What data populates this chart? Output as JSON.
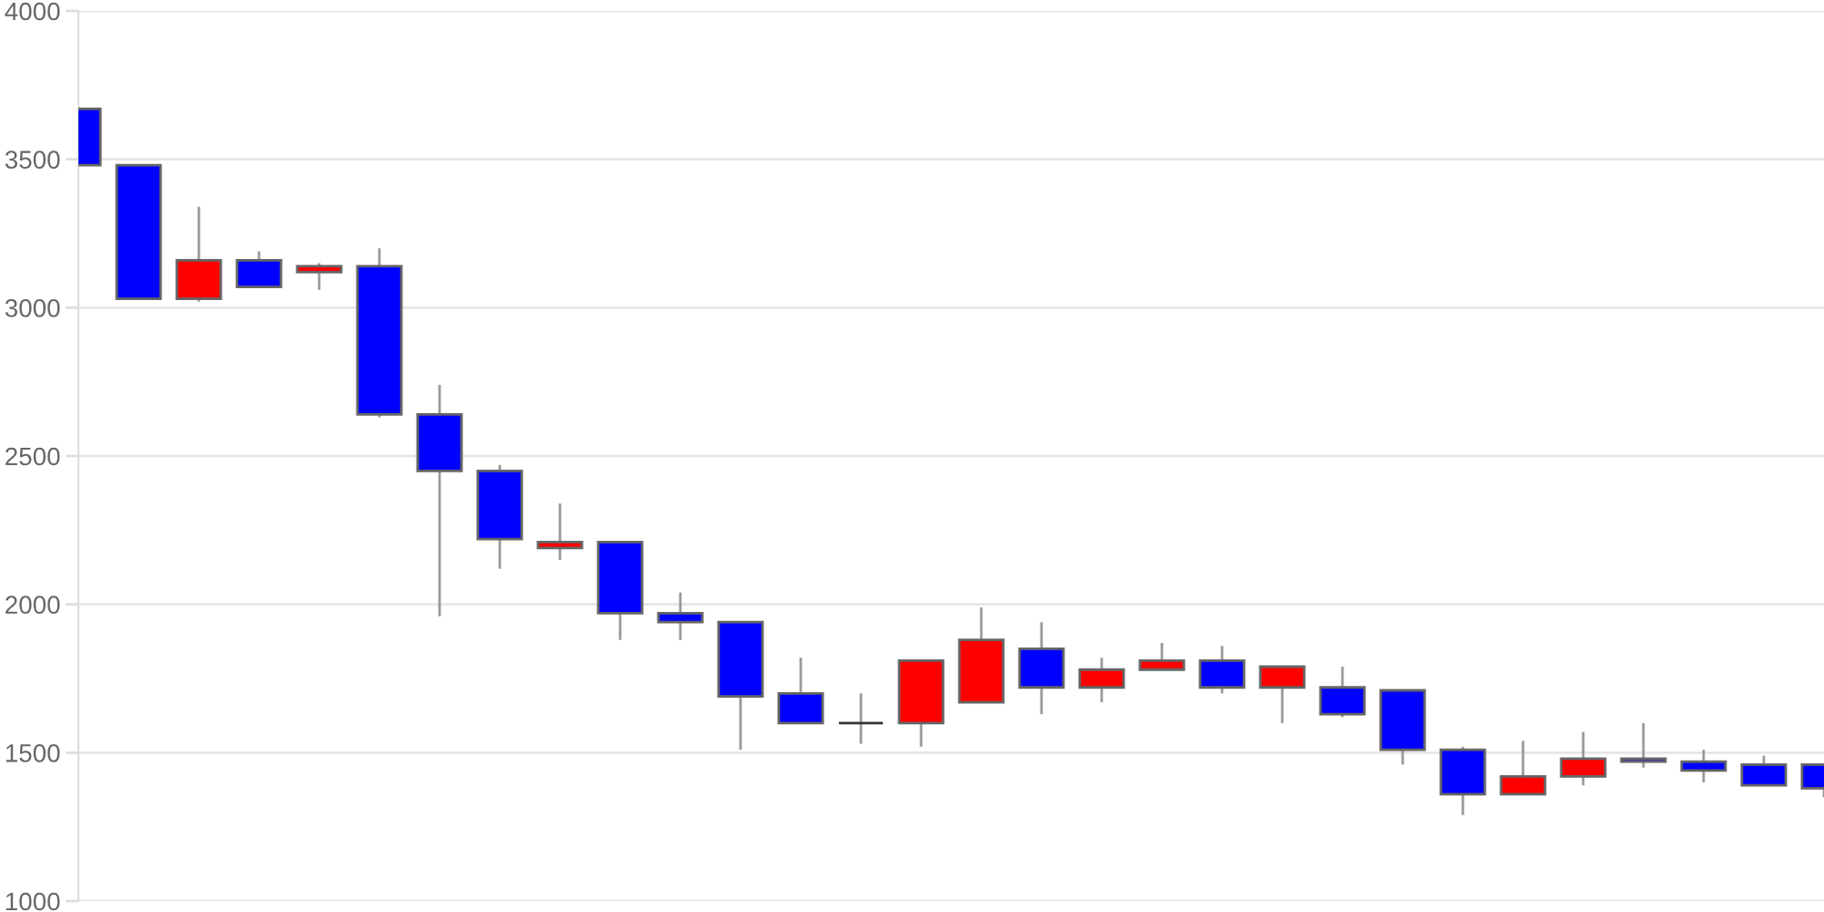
{
  "chart_data": {
    "type": "candlestick",
    "categories": [
      null,
      null,
      null,
      null,
      null,
      null,
      null,
      null,
      null,
      null,
      null,
      null,
      null,
      null,
      null,
      null,
      null,
      null,
      null,
      null,
      null,
      null,
      null,
      null,
      null,
      null,
      null,
      null,
      null,
      null
    ],
    "ohlc": [
      [
        3670,
        3680,
        3480,
        3480
      ],
      [
        3480,
        3480,
        3030,
        3030
      ],
      [
        3030,
        3340,
        3020,
        3160
      ],
      [
        3160,
        3190,
        3070,
        3070
      ],
      [
        3120,
        3150,
        3060,
        3140
      ],
      [
        3140,
        3200,
        2630,
        2640
      ],
      [
        2640,
        2740,
        1960,
        2450
      ],
      [
        2450,
        2470,
        2120,
        2220
      ],
      [
        2190,
        2340,
        2150,
        2210
      ],
      [
        2210,
        2210,
        1880,
        1970
      ],
      [
        1970,
        2040,
        1880,
        1940
      ],
      [
        1940,
        1940,
        1510,
        1690
      ],
      [
        1700,
        1820,
        1600,
        1600
      ],
      [
        1600,
        1700,
        1530,
        1600
      ],
      [
        1600,
        1810,
        1520,
        1810
      ],
      [
        1670,
        1990,
        1670,
        1880
      ],
      [
        1850,
        1940,
        1630,
        1720
      ],
      [
        1720,
        1820,
        1670,
        1780
      ],
      [
        1780,
        1870,
        1780,
        1810
      ],
      [
        1810,
        1860,
        1700,
        1720
      ],
      [
        1720,
        1790,
        1600,
        1790
      ],
      [
        1720,
        1790,
        1620,
        1630
      ],
      [
        1710,
        1710,
        1460,
        1510
      ],
      [
        1510,
        1520,
        1290,
        1360
      ],
      [
        1360,
        1540,
        1360,
        1420
      ],
      [
        1420,
        1570,
        1390,
        1480
      ],
      [
        1480,
        1600,
        1450,
        1470
      ],
      [
        1470,
        1510,
        1400,
        1440
      ],
      [
        1460,
        1490,
        1390,
        1390
      ],
      [
        1460,
        1460,
        1350,
        1380
      ]
    ],
    "colors": [
      "#0000ff",
      "#0000ff",
      "#ff0000",
      "#0000ff",
      "#ff0000",
      "#0000ff",
      "#0000ff",
      "#0000ff",
      "#ff0000",
      "#0000ff",
      "#0000ff",
      "#0000ff",
      "#0000ff",
      "#333333",
      "#ff0000",
      "#ff0000",
      "#0000ff",
      "#ff0000",
      "#ff0000",
      "#0000ff",
      "#ff0000",
      "#0000ff",
      "#0000ff",
      "#0000ff",
      "#ff0000",
      "#ff0000",
      "#0000ff",
      "#0000ff",
      "#0000ff",
      "#0000ff"
    ],
    "ylim": [
      1000,
      4000
    ],
    "yticks": [
      1000,
      1500,
      2000,
      2500,
      3000,
      3500,
      4000
    ],
    "grid": "y",
    "tick_labels": "y"
  }
}
